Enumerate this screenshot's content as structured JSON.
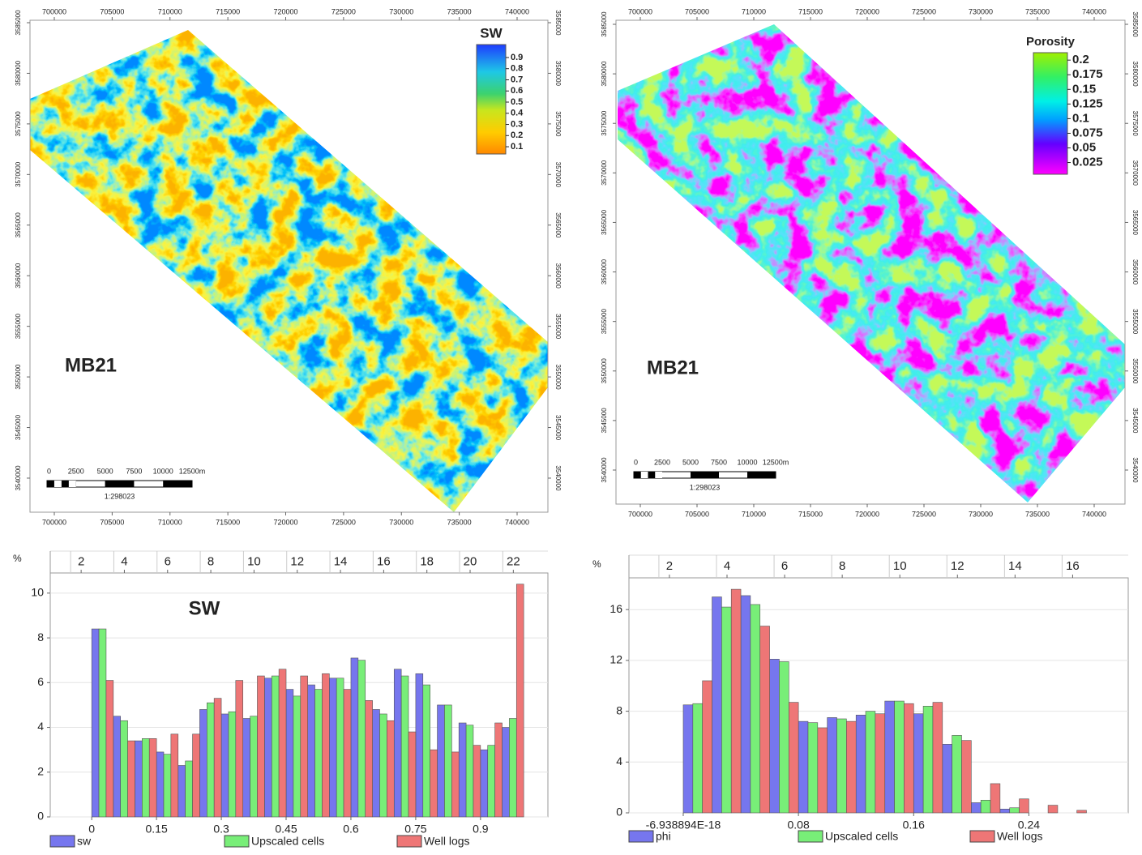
{
  "chart_data": [
    {
      "type": "map",
      "label": "MB21",
      "xlim": [
        697898,
        742662
      ],
      "xticks": [
        700000,
        705000,
        710000,
        715000,
        720000,
        725000,
        730000,
        735000,
        740000
      ],
      "ylim": [
        3536635,
        3585240
      ],
      "yticks": [
        3540000,
        3545000,
        3550000,
        3555000,
        3560000,
        3565000,
        3570000,
        3575000,
        3580000,
        3585000
      ],
      "colorbar": {
        "title": "SW",
        "lim": [
          0.035,
          1.016
        ],
        "ticks": [
          0.1,
          0.2,
          0.3,
          0.4,
          0.5,
          0.6,
          0.7,
          0.8,
          0.9
        ]
      },
      "scale_bar": {
        "labels": [
          "0",
          "2500",
          "5000",
          "7500",
          "10000",
          "12500m"
        ],
        "ratio": "1:298023"
      }
    },
    {
      "type": "map",
      "label": "MB21",
      "xlim": [
        697857,
        742714
      ],
      "xticks": [
        700000,
        705000,
        710000,
        715000,
        720000,
        725000,
        730000,
        735000,
        740000
      ],
      "ylim": [
        3536563,
        3585409
      ],
      "yticks": [
        3540000,
        3545000,
        3550000,
        3555000,
        3560000,
        3565000,
        3570000,
        3575000,
        3580000,
        3585000
      ],
      "colorbar": {
        "title": "Porosity",
        "lim": [
          0.005,
          0.2127
        ],
        "ticks": [
          0.025,
          0.05,
          0.075,
          0.1,
          0.125,
          0.15,
          0.175,
          0.2
        ]
      },
      "scale_bar": {
        "labels": [
          "0",
          "2500",
          "5000",
          "7500",
          "10000",
          "12500m"
        ],
        "ratio": "1:298023"
      }
    },
    {
      "type": "histogram",
      "title": "SW",
      "y_label": "%",
      "bins": [
        0,
        0.05,
        0.1,
        0.15,
        0.2,
        0.25,
        0.3,
        0.35,
        0.4,
        0.45,
        0.5,
        0.55,
        0.6,
        0.65,
        0.7,
        0.75,
        0.8,
        0.85,
        0.9,
        0.95,
        1
      ],
      "series": [
        {
          "name": "sw",
          "color": "#7676ee",
          "values": [
            8.4,
            4.5,
            3.4,
            2.9,
            2.3,
            4.8,
            4.6,
            4.4,
            6.2,
            5.7,
            5.9,
            6.2,
            7.1,
            4.8,
            6.6,
            6.4,
            5.0,
            4.2,
            3.0,
            4.0
          ]
        },
        {
          "name": "Upscaled cells",
          "color": "#78ee78",
          "values": [
            8.4,
            4.3,
            3.5,
            2.8,
            2.5,
            5.1,
            4.7,
            4.5,
            6.3,
            5.4,
            5.7,
            6.2,
            7.0,
            4.6,
            6.3,
            5.9,
            5.0,
            4.1,
            3.2,
            4.4
          ]
        },
        {
          "name": "Well logs",
          "color": "#ee7676",
          "values": [
            6.1,
            3.4,
            3.5,
            3.7,
            3.7,
            5.3,
            6.1,
            6.3,
            6.6,
            6.3,
            6.4,
            5.7,
            5.2,
            4.3,
            3.8,
            3.0,
            2.9,
            3.2,
            4.2,
            10.4
          ]
        }
      ],
      "xlim": [
        -0.096,
        1.056
      ],
      "xticks": [
        0,
        0.15,
        0.3,
        0.45,
        0.6,
        0.75,
        0.9
      ],
      "x2lim": [
        0.57,
        23.6
      ],
      "x2ticks": [
        2,
        4,
        6,
        8,
        10,
        12,
        14,
        16,
        18,
        20,
        22
      ],
      "ylim": [
        0,
        10.9
      ],
      "yticks": [
        0,
        2,
        4,
        6,
        8,
        10
      ],
      "grid": true
    },
    {
      "type": "histogram",
      "y_label": "%",
      "bins": [
        0,
        0.02,
        0.04,
        0.06,
        0.08,
        0.1,
        0.12,
        0.14,
        0.16,
        0.18,
        0.2,
        0.22,
        0.24,
        0.26,
        0.28
      ],
      "series": [
        {
          "name": "phi",
          "color": "#7676ee",
          "values": [
            8.5,
            17.0,
            17.1,
            12.1,
            7.2,
            7.5,
            7.7,
            8.8,
            7.8,
            5.4,
            0.8,
            0.3,
            0,
            0
          ]
        },
        {
          "name": "Upscaled cells",
          "color": "#78ee78",
          "values": [
            8.6,
            16.2,
            16.4,
            11.9,
            7.1,
            7.4,
            8.0,
            8.8,
            8.4,
            6.1,
            1.0,
            0.4,
            0,
            0
          ]
        },
        {
          "name": "Well logs",
          "color": "#ee7676",
          "values": [
            10.4,
            17.6,
            14.7,
            8.7,
            6.7,
            7.2,
            7.8,
            8.6,
            8.7,
            5.7,
            2.3,
            1.1,
            0.6,
            0.2
          ]
        }
      ],
      "xlim": [
        -0.0377,
        0.309
      ],
      "xticks": [
        {
          "value": 0,
          "label": "-6.938894E-18"
        },
        0.08,
        0.16,
        0.24
      ],
      "x2lim": [
        0.595,
        17.93
      ],
      "x2ticks": [
        2,
        4,
        6,
        8,
        10,
        12,
        14,
        16
      ],
      "ylim": [
        0,
        18.5
      ],
      "yticks": [
        0,
        4,
        8,
        12,
        16
      ],
      "grid": true
    }
  ]
}
